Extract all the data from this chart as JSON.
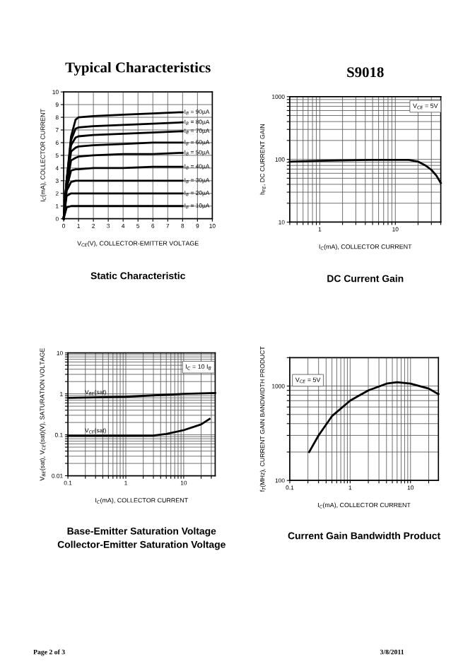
{
  "chart_data": [
    {
      "type": "line",
      "title": "Typical Characteristics",
      "xlabel": "V$_{CE}$(V), COLLECTOR-EMITTER VOLTAGE",
      "ylabel": "I$_{C}$(mA), COLLECTOR CURRENT",
      "xlim": [
        0,
        10
      ],
      "ylim": [
        0,
        10
      ],
      "xticks": [
        0,
        1,
        2,
        3,
        4,
        5,
        6,
        7,
        8,
        9,
        10
      ],
      "yticks": [
        0,
        1,
        2,
        3,
        4,
        5,
        6,
        7,
        8,
        9,
        10
      ],
      "grid": true,
      "annotations": [
        "Static Characteristic",
        "Page 2 of 3",
        "3/8/2011"
      ],
      "series": [
        {
          "name": "I$_{B}$ = 90µA",
          "color": "#000000",
          "x": [
            0,
            0.2,
            0.5,
            0.8,
            1,
            2,
            4,
            6,
            8
          ],
          "values": [
            0,
            3,
            6.5,
            7.8,
            8.0,
            8.1,
            8.2,
            8.3,
            8.4
          ]
        },
        {
          "name": "I$_{B}$ = 80µA",
          "color": "#000000",
          "x": [
            0,
            0.2,
            0.5,
            0.8,
            1,
            2,
            4,
            6,
            8
          ],
          "values": [
            0,
            3,
            6.2,
            7.1,
            7.2,
            7.3,
            7.4,
            7.5,
            7.6
          ]
        },
        {
          "name": "I$_{B}$ = 70µA",
          "color": "#000000",
          "x": [
            0,
            0.2,
            0.5,
            0.8,
            1,
            2,
            4,
            6,
            8
          ],
          "values": [
            0,
            3,
            5.8,
            6.4,
            6.5,
            6.6,
            6.7,
            6.8,
            6.9
          ]
        },
        {
          "name": "I$_{B}$ = 60µA",
          "color": "#000000",
          "x": [
            0,
            0.2,
            0.5,
            0.8,
            1,
            2,
            4,
            6,
            8
          ],
          "values": [
            0,
            2.8,
            5.3,
            5.6,
            5.7,
            5.8,
            5.9,
            6.0,
            6.0
          ]
        },
        {
          "name": "I$_{B}$ = 50µA",
          "color": "#000000",
          "x": [
            0,
            0.2,
            0.5,
            0.8,
            1,
            2,
            4,
            6,
            8
          ],
          "values": [
            0,
            2.6,
            4.6,
            4.8,
            4.9,
            5.0,
            5.1,
            5.1,
            5.2
          ]
        },
        {
          "name": "I$_{B}$ = 40µA",
          "color": "#000000",
          "x": [
            0,
            0.2,
            0.5,
            0.8,
            1,
            2,
            4,
            6,
            8
          ],
          "values": [
            0,
            2.4,
            3.8,
            3.9,
            3.9,
            4.0,
            4.0,
            4.1,
            4.1
          ]
        },
        {
          "name": "I$_{B}$ = 30µA",
          "color": "#000000",
          "x": [
            0,
            0.2,
            0.5,
            0.8,
            1,
            2,
            4,
            6,
            8
          ],
          "values": [
            0,
            2.2,
            2.9,
            3.0,
            3.0,
            3.0,
            3.0,
            3.0,
            3.0
          ]
        },
        {
          "name": "I$_{B}$ = 20µA",
          "color": "#000000",
          "x": [
            0,
            0.2,
            0.5,
            0.8,
            1,
            2,
            4,
            6,
            8
          ],
          "values": [
            0,
            1.8,
            2.0,
            2.0,
            2.0,
            2.0,
            2.0,
            2.0,
            2.0
          ]
        },
        {
          "name": "I$_{B}$ = 10µA",
          "color": "#000000",
          "x": [
            0,
            0.2,
            0.5,
            0.8,
            1,
            2,
            4,
            6,
            8
          ],
          "values": [
            0,
            0.9,
            1.0,
            1.0,
            1.0,
            1.0,
            1.0,
            1.0,
            1.0
          ]
        }
      ]
    },
    {
      "type": "line",
      "title": "S9018",
      "xlabel": "I$_{C}$(mA), COLLECTOR CURRENT",
      "ylabel": "h$_{FE}$, DC CURRENT GAIN",
      "log": "xy",
      "xlim": [
        0.4,
        40
      ],
      "ylim": [
        10,
        1000
      ],
      "xticks": [
        1,
        10
      ],
      "yticks": [
        10,
        100,
        1000
      ],
      "grid": true,
      "annotations": [
        "DC Current Gain",
        {
          "text": "V$_{CE}$ = 5V",
          "x": 25,
          "y": 700
        }
      ],
      "series": [
        {
          "color": "#000000",
          "x": [
            0.4,
            1,
            5,
            15,
            20,
            25,
            30,
            35,
            40
          ],
          "values": [
            92,
            95,
            98,
            98,
            92,
            80,
            68,
            55,
            42
          ]
        }
      ]
    },
    {
      "type": "line",
      "xlabel": "I$_{C}$(mA), COLLECTOR CURRENT",
      "ylabel": "V$_{BE}$(sat), V$_{CE}$(sat)(V), SATURATION VOLTAGE",
      "log": "xy",
      "xlim": [
        0.1,
        35
      ],
      "ylim": [
        0.01,
        10
      ],
      "xticks": [
        0.1,
        1,
        10
      ],
      "yticks": [
        0.01,
        0.1,
        1,
        10
      ],
      "grid": true,
      "annotations": [
        "Base-Emitter Saturation Voltage\nCollector-Emitter Saturation Voltage",
        {
          "text": "I$_{C}$ = 10 I$_{B}$",
          "x": 18,
          "y": 4.5
        }
      ],
      "series": [
        {
          "name": "V$_{BE}$(sat)",
          "color": "#000000",
          "x": [
            0.1,
            0.3,
            1,
            3,
            10,
            35
          ],
          "values": [
            0.8,
            0.82,
            0.85,
            0.92,
            1.0,
            1.05
          ]
        },
        {
          "name": "V$_{CE}$(sat)",
          "color": "#000000",
          "x": [
            0.1,
            0.3,
            1,
            3,
            5,
            10,
            20,
            28
          ],
          "values": [
            0.095,
            0.095,
            0.095,
            0.096,
            0.105,
            0.13,
            0.18,
            0.245
          ]
        }
      ]
    },
    {
      "type": "line",
      "xlabel": "I$_{C}$(mA), COLLECTOR CURRENT",
      "ylabel": "f$_{T}$(MHz), CURRENT GAIN BANDWIDTH PRODUCT",
      "log": "xy",
      "xlim": [
        0.1,
        29
      ],
      "ylim": [
        100,
        2000
      ],
      "xticks": [
        0.1,
        1,
        10
      ],
      "yticks": [
        100,
        1000
      ],
      "grid": true,
      "annotations": [
        "Current Gain Bandwidth Product",
        {
          "text": "V$_{CE}$ = 5V",
          "x": 0.2,
          "y": 1150
        }
      ],
      "series": [
        {
          "color": "#000000",
          "x": [
            0.21,
            0.3,
            0.5,
            1,
            2,
            4,
            6,
            10,
            20,
            29
          ],
          "values": [
            200,
            300,
            480,
            700,
            900,
            1060,
            1100,
            1060,
            940,
            820
          ]
        }
      ]
    }
  ]
}
